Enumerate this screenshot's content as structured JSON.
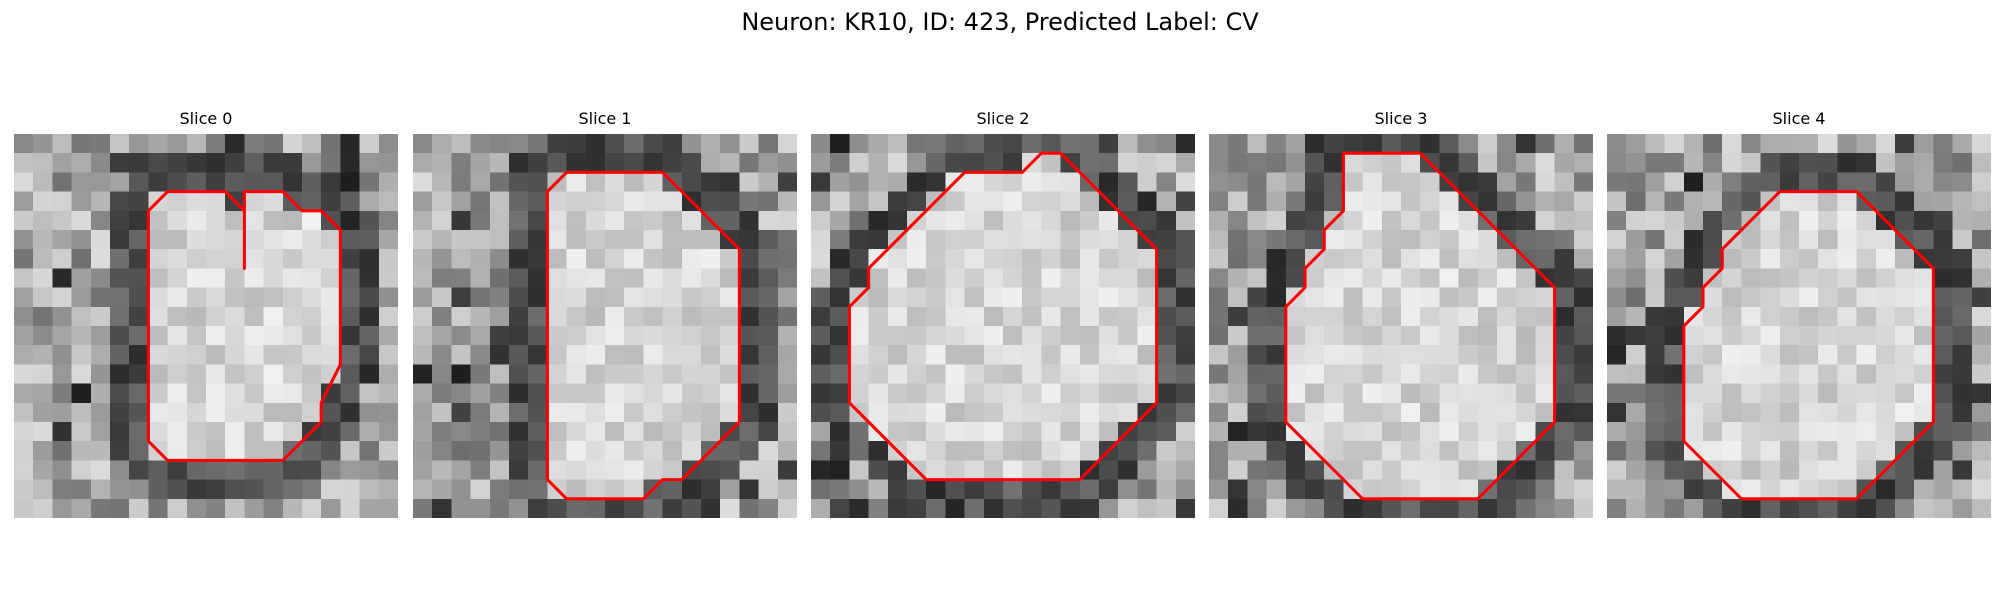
{
  "figure": {
    "title": "Neuron: KR10, ID: 423, Predicted Label: CV"
  },
  "colors": {
    "contour": "#ff0000",
    "background": "#ffffff"
  },
  "panels": [
    {
      "title": "Slice 0",
      "seed": 11,
      "contour": [
        [
          12,
          7
        ],
        [
          12,
          4
        ],
        [
          12,
          3
        ],
        [
          13,
          3
        ],
        [
          14,
          3
        ],
        [
          15,
          4
        ],
        [
          16,
          4
        ],
        [
          17,
          5
        ],
        [
          17,
          6
        ],
        [
          17,
          7
        ],
        [
          17,
          8
        ],
        [
          17,
          9
        ],
        [
          17,
          10
        ],
        [
          17,
          11
        ],
        [
          17,
          12
        ],
        [
          16,
          14
        ],
        [
          16,
          15
        ],
        [
          15,
          16
        ],
        [
          14,
          17
        ],
        [
          13,
          17
        ],
        [
          12,
          17
        ],
        [
          11,
          17
        ],
        [
          10,
          17
        ],
        [
          9,
          17
        ],
        [
          8,
          17
        ],
        [
          7,
          16
        ],
        [
          7,
          15
        ],
        [
          7,
          14
        ],
        [
          7,
          13
        ],
        [
          7,
          12
        ],
        [
          7,
          11
        ],
        [
          7,
          10
        ],
        [
          7,
          9
        ],
        [
          7,
          8
        ],
        [
          7,
          7
        ],
        [
          7,
          6
        ],
        [
          7,
          5
        ],
        [
          7,
          4
        ],
        [
          8,
          3
        ],
        [
          9,
          3
        ],
        [
          10,
          3
        ],
        [
          11,
          3
        ],
        [
          12,
          4
        ]
      ]
    },
    {
      "title": "Slice 1",
      "seed": 23,
      "contour": [
        [
          10,
          2
        ],
        [
          13,
          2
        ],
        [
          14,
          3
        ],
        [
          15,
          4
        ],
        [
          16,
          5
        ],
        [
          17,
          6
        ],
        [
          17,
          7
        ],
        [
          17,
          8
        ],
        [
          17,
          9
        ],
        [
          17,
          10
        ],
        [
          17,
          11
        ],
        [
          17,
          12
        ],
        [
          17,
          13
        ],
        [
          17,
          14
        ],
        [
          17,
          15
        ],
        [
          16,
          16
        ],
        [
          15,
          17
        ],
        [
          14,
          18
        ],
        [
          13,
          18
        ],
        [
          12,
          19
        ],
        [
          11,
          19
        ],
        [
          10,
          19
        ],
        [
          9,
          19
        ],
        [
          8,
          19
        ],
        [
          7,
          18
        ],
        [
          7,
          17
        ],
        [
          7,
          16
        ],
        [
          7,
          15
        ],
        [
          7,
          14
        ],
        [
          7,
          13
        ],
        [
          7,
          12
        ],
        [
          7,
          11
        ],
        [
          7,
          10
        ],
        [
          7,
          9
        ],
        [
          7,
          8
        ],
        [
          7,
          7
        ],
        [
          7,
          6
        ],
        [
          7,
          5
        ],
        [
          7,
          4
        ],
        [
          7,
          3
        ],
        [
          8,
          2
        ],
        [
          9,
          2
        ]
      ]
    },
    {
      "title": "Slice 2",
      "seed": 37,
      "contour": [
        [
          12,
          1
        ],
        [
          13,
          1
        ],
        [
          14,
          2
        ],
        [
          15,
          3
        ],
        [
          16,
          4
        ],
        [
          17,
          5
        ],
        [
          18,
          6
        ],
        [
          18,
          7
        ],
        [
          18,
          8
        ],
        [
          18,
          9
        ],
        [
          18,
          10
        ],
        [
          18,
          11
        ],
        [
          18,
          12
        ],
        [
          18,
          13
        ],
        [
          18,
          14
        ],
        [
          17,
          15
        ],
        [
          16,
          16
        ],
        [
          15,
          17
        ],
        [
          14,
          18
        ],
        [
          13,
          18
        ],
        [
          12,
          18
        ],
        [
          11,
          18
        ],
        [
          10,
          18
        ],
        [
          9,
          18
        ],
        [
          8,
          18
        ],
        [
          7,
          18
        ],
        [
          6,
          18
        ],
        [
          5,
          17
        ],
        [
          4,
          16
        ],
        [
          3,
          15
        ],
        [
          2,
          14
        ],
        [
          2,
          13
        ],
        [
          2,
          12
        ],
        [
          2,
          11
        ],
        [
          2,
          10
        ],
        [
          2,
          9
        ],
        [
          3,
          8
        ],
        [
          3,
          7
        ],
        [
          4,
          6
        ],
        [
          5,
          5
        ],
        [
          6,
          4
        ],
        [
          7,
          3
        ],
        [
          8,
          2
        ],
        [
          9,
          2
        ],
        [
          10,
          2
        ],
        [
          11,
          2
        ]
      ]
    },
    {
      "title": "Slice 3",
      "seed": 53,
      "contour": [
        [
          8,
          1
        ],
        [
          9,
          1
        ],
        [
          10,
          1
        ],
        [
          11,
          1
        ],
        [
          12,
          2
        ],
        [
          13,
          3
        ],
        [
          14,
          4
        ],
        [
          15,
          5
        ],
        [
          16,
          6
        ],
        [
          17,
          7
        ],
        [
          18,
          8
        ],
        [
          18,
          9
        ],
        [
          18,
          10
        ],
        [
          18,
          11
        ],
        [
          18,
          12
        ],
        [
          18,
          13
        ],
        [
          18,
          14
        ],
        [
          18,
          15
        ],
        [
          17,
          16
        ],
        [
          16,
          17
        ],
        [
          15,
          18
        ],
        [
          14,
          19
        ],
        [
          13,
          19
        ],
        [
          12,
          19
        ],
        [
          11,
          19
        ],
        [
          10,
          19
        ],
        [
          9,
          19
        ],
        [
          8,
          19
        ],
        [
          7,
          18
        ],
        [
          6,
          17
        ],
        [
          5,
          16
        ],
        [
          4,
          15
        ],
        [
          4,
          14
        ],
        [
          4,
          13
        ],
        [
          4,
          12
        ],
        [
          4,
          11
        ],
        [
          4,
          10
        ],
        [
          4,
          9
        ],
        [
          5,
          8
        ],
        [
          5,
          7
        ],
        [
          6,
          6
        ],
        [
          6,
          5
        ],
        [
          7,
          4
        ],
        [
          7,
          3
        ],
        [
          7,
          2
        ],
        [
          7,
          1
        ]
      ]
    },
    {
      "title": "Slice 4",
      "seed": 71,
      "contour": [
        [
          11,
          3
        ],
        [
          12,
          3
        ],
        [
          13,
          3
        ],
        [
          14,
          4
        ],
        [
          15,
          5
        ],
        [
          16,
          6
        ],
        [
          17,
          7
        ],
        [
          17,
          8
        ],
        [
          17,
          9
        ],
        [
          17,
          10
        ],
        [
          17,
          11
        ],
        [
          17,
          12
        ],
        [
          17,
          13
        ],
        [
          17,
          14
        ],
        [
          17,
          15
        ],
        [
          16,
          16
        ],
        [
          15,
          17
        ],
        [
          14,
          18
        ],
        [
          13,
          19
        ],
        [
          12,
          19
        ],
        [
          11,
          19
        ],
        [
          10,
          19
        ],
        [
          9,
          19
        ],
        [
          8,
          19
        ],
        [
          7,
          19
        ],
        [
          6,
          18
        ],
        [
          5,
          17
        ],
        [
          4,
          16
        ],
        [
          4,
          15
        ],
        [
          4,
          14
        ],
        [
          4,
          13
        ],
        [
          4,
          12
        ],
        [
          4,
          11
        ],
        [
          4,
          10
        ],
        [
          5,
          9
        ],
        [
          5,
          8
        ],
        [
          6,
          7
        ],
        [
          6,
          6
        ],
        [
          7,
          5
        ],
        [
          8,
          4
        ],
        [
          9,
          3
        ],
        [
          10,
          3
        ]
      ]
    }
  ]
}
